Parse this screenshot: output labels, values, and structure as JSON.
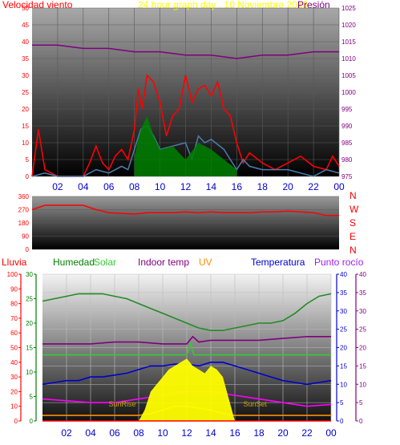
{
  "chart_data": [
    {
      "type": "line",
      "title": "24 hour graph day . 10 Noviembre 2018",
      "left_axis_label": "Velocidad viento",
      "right_axis_label": "Presión",
      "x_tick_labels": [
        "02",
        "04",
        "06",
        "08",
        "10",
        "12",
        "14",
        "16",
        "18",
        "20",
        "22",
        "00"
      ],
      "y_left": {
        "range": [
          0,
          50
        ],
        "ticks": [
          0,
          5,
          10,
          15,
          20,
          25,
          30,
          35,
          40,
          45,
          50
        ]
      },
      "y_right": {
        "range": [
          975,
          1025
        ],
        "ticks": [
          975,
          980,
          985,
          990,
          995,
          1000,
          1005,
          1010,
          1015,
          1020,
          1025
        ]
      },
      "series": [
        {
          "color": "#ff0000",
          "axis": "left",
          "x": [
            0,
            0.5,
            1,
            2,
            3,
            4,
            4.5,
            5,
            5.5,
            6,
            6.5,
            7,
            7.5,
            8,
            8.3,
            8.6,
            9,
            9.5,
            10,
            10.5,
            11,
            11.5,
            12,
            12.5,
            13,
            13.5,
            14,
            14.5,
            15,
            15.5,
            16,
            16.5,
            17,
            18,
            19,
            20,
            21,
            22,
            23,
            23.5,
            24
          ],
          "y": [
            0,
            14,
            2,
            0,
            0,
            0,
            4,
            9,
            4,
            2,
            6,
            8,
            5,
            14,
            26,
            20,
            30,
            28,
            22,
            12,
            18,
            20,
            30,
            22,
            26,
            27,
            24,
            28,
            20,
            18,
            10,
            4,
            7,
            4,
            2,
            4,
            6,
            3,
            2,
            6,
            3
          ]
        },
        {
          "color": "#4a7fae",
          "axis": "left",
          "x": [
            0,
            1,
            2,
            4,
            5,
            6,
            7,
            7.5,
            8,
            8.5,
            9,
            9.5,
            10,
            11,
            12,
            12.5,
            13,
            13.5,
            14,
            15,
            16,
            16.5,
            17,
            18,
            20,
            22,
            23,
            24
          ],
          "y": [
            0,
            1,
            0,
            0,
            2,
            1,
            3,
            2,
            8,
            14,
            15,
            12,
            8,
            9,
            10,
            5,
            12,
            10,
            11,
            8,
            2,
            5,
            3,
            2,
            2,
            0,
            2,
            1
          ]
        },
        {
          "color": "#008000",
          "axis": "left",
          "x": [
            8,
            8.5,
            9,
            9.5,
            10,
            11,
            12,
            13,
            14,
            15,
            16
          ],
          "y": [
            6,
            14,
            18,
            12,
            8,
            9,
            5,
            10,
            8,
            5,
            2
          ]
        },
        {
          "color": "#800080",
          "axis": "right",
          "x": [
            0,
            2,
            4,
            6,
            8,
            10,
            12,
            14,
            16,
            18,
            20,
            22,
            24
          ],
          "y": [
            1014,
            1014,
            1013,
            1013,
            1012,
            1012,
            1011,
            1011,
            1010,
            1011,
            1011,
            1012,
            1012
          ]
        }
      ]
    },
    {
      "type": "line",
      "right_axis_letters": [
        "N",
        "W",
        "S",
        "E",
        "N"
      ],
      "x_tick_labels": [],
      "y_left": {
        "range": [
          0,
          360
        ],
        "ticks": [
          0,
          90,
          180,
          270,
          360
        ]
      },
      "series": [
        {
          "color": "#ff0000",
          "x": [
            0,
            1,
            2,
            3,
            4,
            5,
            6,
            7,
            8,
            9,
            10,
            11,
            12,
            13,
            14,
            15,
            16,
            17,
            18,
            19,
            20,
            21,
            22,
            23,
            24
          ],
          "y": [
            270,
            300,
            300,
            300,
            300,
            270,
            250,
            245,
            240,
            250,
            250,
            250,
            255,
            250,
            255,
            250,
            250,
            250,
            255,
            255,
            260,
            255,
            250,
            230,
            230
          ]
        }
      ]
    },
    {
      "type": "line",
      "legend": [
        {
          "label": "Lluvia",
          "color": "#ff0000"
        },
        {
          "label": "Humedad",
          "color": "#008000"
        },
        {
          "label": "Solar",
          "color": "#33cc33"
        },
        {
          "label": "Indoor temp",
          "color": "#800080"
        },
        {
          "label": "UV",
          "color": "#ff8c00"
        },
        {
          "label": "Temperatura",
          "color": "#0000cc"
        },
        {
          "label": "Punto rocío",
          "color": "#a020f0"
        }
      ],
      "annotations": [
        "SunRise",
        "SunSet"
      ],
      "x_tick_labels": [
        "02",
        "04",
        "06",
        "08",
        "10",
        "12",
        "14",
        "16",
        "18",
        "20",
        "22",
        "00"
      ],
      "axes": [
        {
          "id": "lluvia",
          "color": "#ff0000",
          "range": [
            0,
            100
          ],
          "ticks": [
            0,
            10,
            20,
            30,
            40,
            50,
            60,
            70,
            80,
            90,
            100
          ]
        },
        {
          "id": "humedad",
          "color": "#008000",
          "range": [
            0,
            30
          ],
          "ticks": [
            0,
            5,
            10,
            15,
            20,
            25,
            30
          ]
        },
        {
          "id": "temp",
          "color": "#0000cc",
          "range": [
            0,
            40
          ],
          "ticks": [
            0,
            5,
            10,
            15,
            20,
            25,
            30,
            35,
            40
          ]
        },
        {
          "id": "dew",
          "color": "#800080",
          "range": [
            0,
            40
          ],
          "ticks": [
            0,
            5,
            10,
            15,
            20,
            25,
            30,
            35,
            40
          ]
        }
      ],
      "series": [
        {
          "name": "Humedad",
          "color": "#228b22",
          "axis": "humedad",
          "x": [
            0,
            1,
            2,
            3,
            4,
            5,
            6,
            7,
            8,
            9,
            10,
            11,
            12,
            13,
            14,
            15,
            16,
            17,
            18,
            19,
            20,
            21,
            22,
            23,
            24
          ],
          "y": [
            24.5,
            25,
            25.5,
            26,
            26,
            26,
            25.5,
            25,
            24,
            23,
            22,
            21,
            20,
            19,
            18.5,
            18.5,
            19,
            19.5,
            20,
            20,
            20.5,
            22,
            24,
            25.5,
            26
          ]
        },
        {
          "name": "Indoor temp",
          "color": "#800080",
          "axis": "temp",
          "x": [
            0,
            2,
            4,
            6,
            8,
            10,
            11,
            12,
            12.5,
            13,
            14,
            16,
            18,
            20,
            22,
            24
          ],
          "y": [
            21,
            21,
            21,
            21.5,
            21.5,
            21,
            21,
            21,
            23,
            21.5,
            22,
            22,
            22,
            22.5,
            23,
            23
          ]
        },
        {
          "name": "Solar",
          "color": "#33cc33",
          "axis": "temp",
          "x": [
            0,
            4,
            8,
            11.5,
            12,
            12.3,
            12.6,
            13,
            16,
            20,
            24
          ],
          "y": [
            18,
            18,
            18,
            18,
            18,
            21,
            18,
            18,
            18,
            18,
            18
          ]
        },
        {
          "name": "Temperatura",
          "color": "#0000cc",
          "axis": "temp",
          "x": [
            0,
            1,
            2,
            3,
            4,
            5,
            6,
            7,
            8,
            9,
            10,
            11,
            12,
            13,
            14,
            15,
            16,
            17,
            18,
            19,
            20,
            21,
            22,
            23,
            24
          ],
          "y": [
            10,
            10.5,
            11,
            11,
            12,
            12,
            12.5,
            13,
            14,
            15,
            15,
            15.5,
            15.5,
            15,
            16,
            16,
            15,
            14,
            13,
            12,
            11,
            10.5,
            10,
            10.5,
            11
          ]
        },
        {
          "name": "Punto rocío",
          "color": "#ff00ff",
          "axis": "temp",
          "x": [
            0,
            2,
            4,
            6,
            8,
            10,
            12,
            14,
            16,
            18,
            20,
            22,
            24
          ],
          "y": [
            6,
            5.5,
            5,
            5,
            6,
            7,
            8,
            8,
            7,
            6,
            5,
            4,
            4.5
          ]
        },
        {
          "name": "UV",
          "color": "#ff8c00",
          "axis": "temp",
          "x": [
            0,
            8,
            9,
            10,
            11,
            12,
            13,
            14,
            15,
            16,
            17,
            24
          ],
          "y": [
            1.5,
            1.5,
            2,
            3,
            4,
            4,
            3.5,
            3,
            2,
            1.5,
            1.5,
            1.5
          ]
        },
        {
          "name": "Solar radiation",
          "color": "#ffff00",
          "type": "area",
          "axis": "temp",
          "x": [
            8,
            8.5,
            9,
            9.5,
            10,
            10.5,
            11,
            11.5,
            12,
            12.5,
            13,
            13.5,
            14,
            14.5,
            15,
            15.5,
            16
          ],
          "y": [
            0,
            3,
            8,
            10,
            12,
            14,
            15,
            16,
            17,
            15,
            14,
            13,
            15,
            14,
            12,
            6,
            0
          ]
        },
        {
          "name": "Lluvia",
          "color": "#ff0000",
          "axis": "lluvia",
          "x": [
            0,
            24
          ],
          "y": [
            0,
            0
          ]
        }
      ]
    }
  ]
}
